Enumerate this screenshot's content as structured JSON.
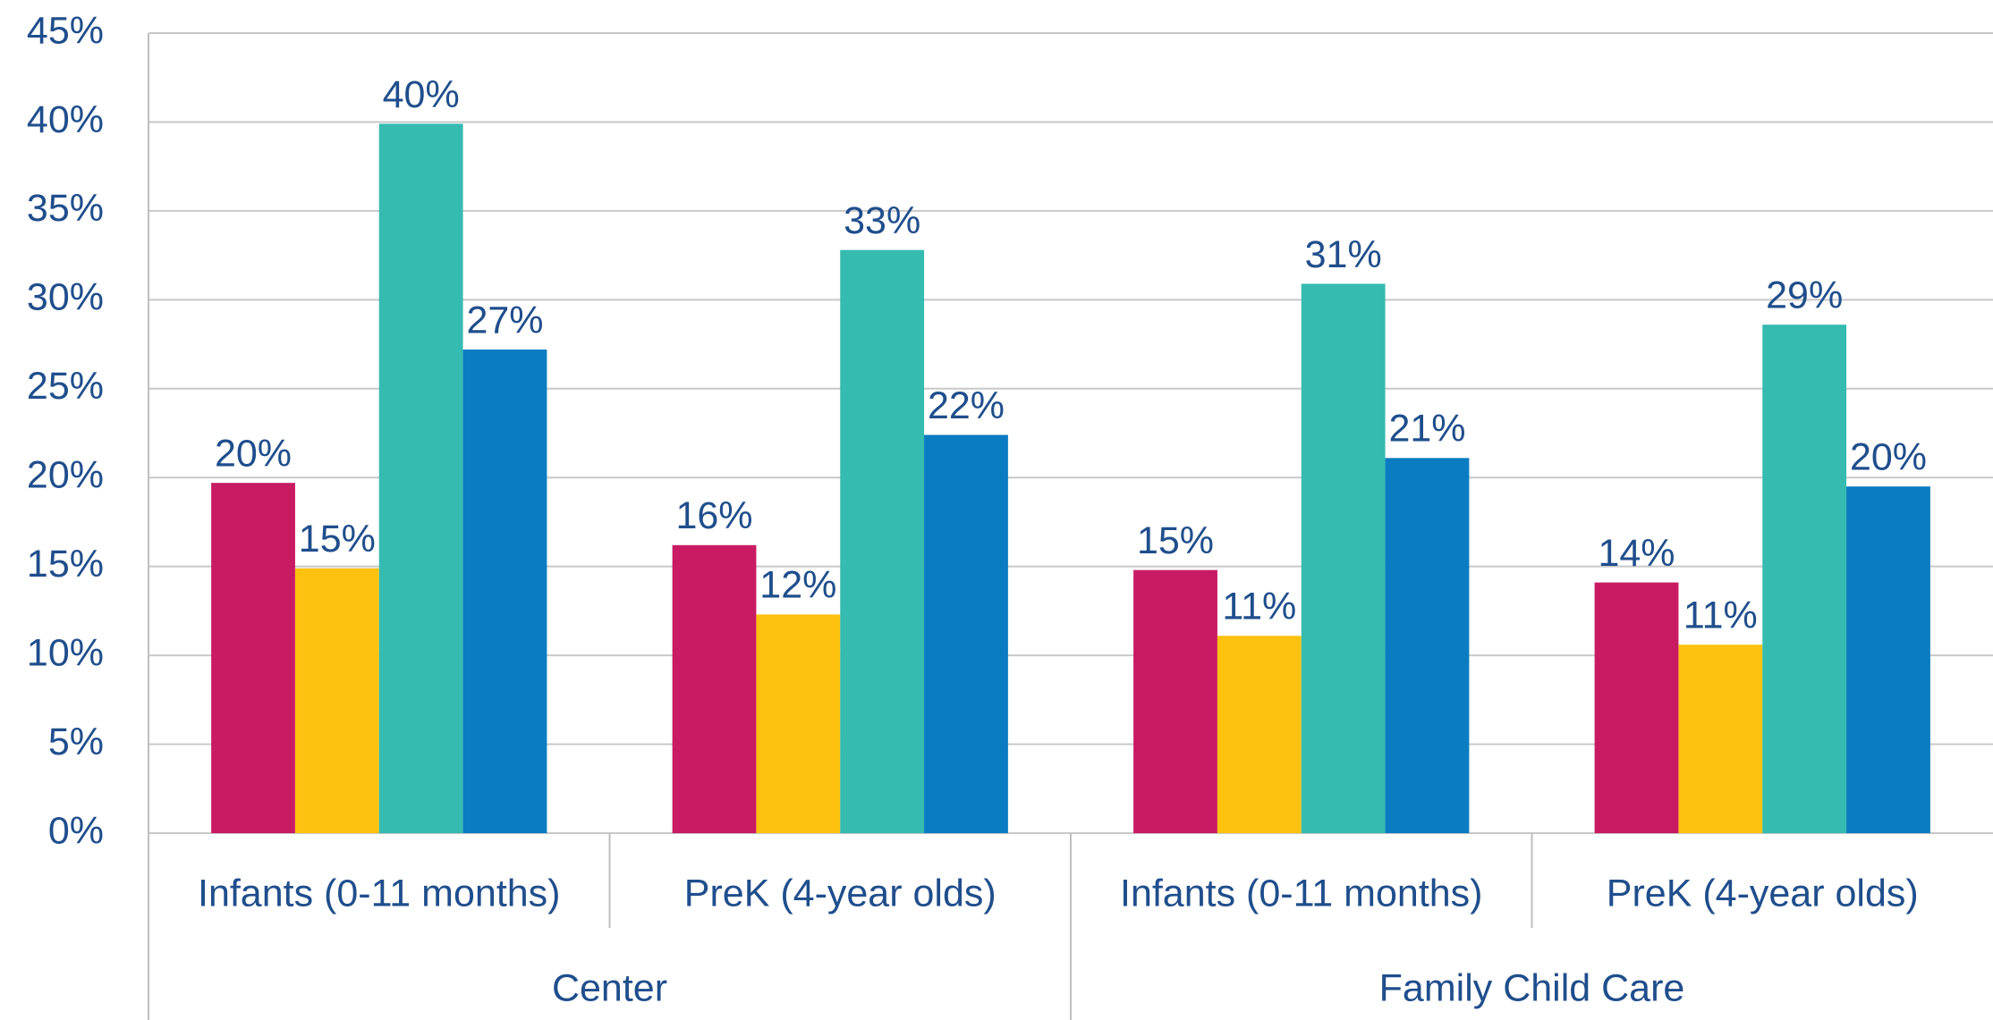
{
  "chart_data": {
    "type": "bar",
    "categories": [
      "Infants (0-11 months)",
      "PreK (4-year olds)",
      "Infants (0-11 months)",
      "PreK (4-year olds)"
    ],
    "groups": [
      "Center",
      "Family Child Care"
    ],
    "series": [
      {
        "color": "#c81b64",
        "values": [
          19.7,
          16.2,
          14.8,
          14.1
        ],
        "value_labels": [
          "20%",
          "16%",
          "15%",
          "14%"
        ]
      },
      {
        "color": "#fdc20f",
        "values": [
          14.9,
          12.3,
          11.1,
          10.6
        ],
        "value_labels": [
          "15%",
          "12%",
          "11%",
          "11%"
        ]
      },
      {
        "color": "#35bbb0",
        "values": [
          39.9,
          32.8,
          30.9,
          28.6
        ],
        "value_labels": [
          "40%",
          "33%",
          "31%",
          "29%"
        ]
      },
      {
        "color": "#0a7cc1",
        "values": [
          27.2,
          22.4,
          21.1,
          19.5
        ],
        "value_labels": [
          "27%",
          "22%",
          "21%",
          "20%"
        ]
      }
    ],
    "ylim": [
      0,
      45
    ],
    "yticks": [
      {
        "value": 0,
        "label": "0%"
      },
      {
        "value": 5,
        "label": "5%"
      },
      {
        "value": 10,
        "label": "10%"
      },
      {
        "value": 15,
        "label": "15%"
      },
      {
        "value": 20,
        "label": "20%"
      },
      {
        "value": 25,
        "label": "25%"
      },
      {
        "value": 30,
        "label": "30%"
      },
      {
        "value": 35,
        "label": "35%"
      },
      {
        "value": 40,
        "label": "40%"
      },
      {
        "value": 45,
        "label": "45%"
      }
    ],
    "grid": true
  }
}
